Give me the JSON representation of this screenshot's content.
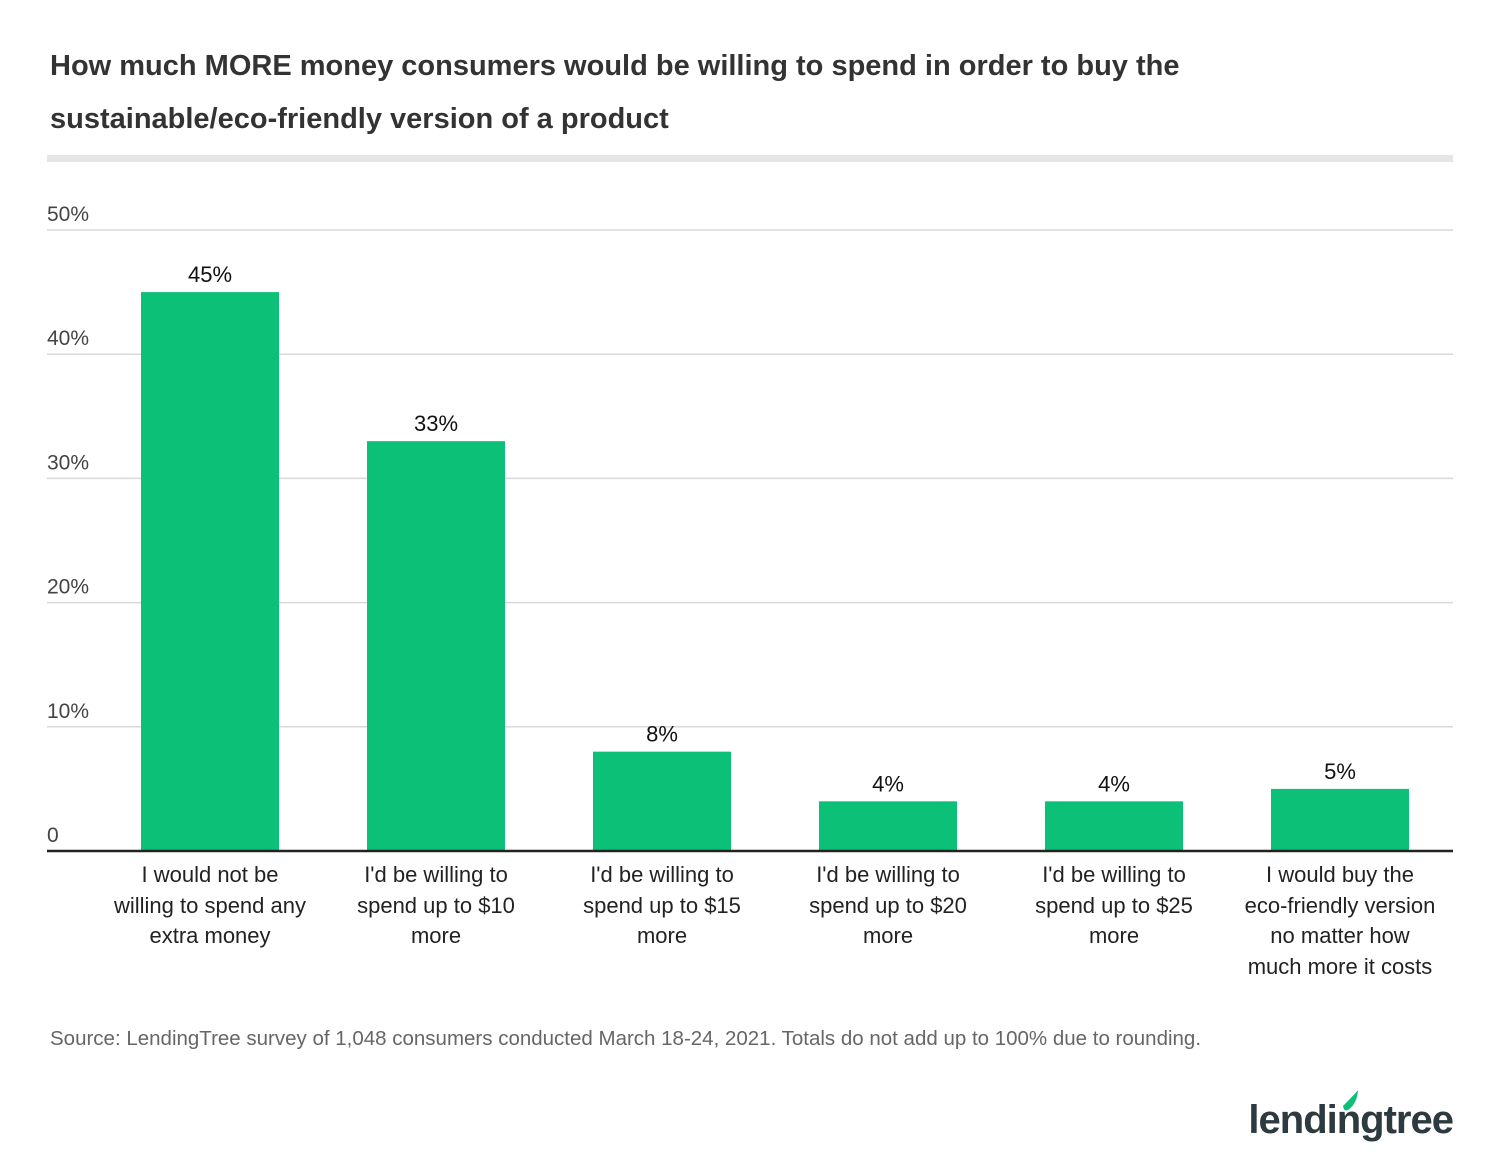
{
  "chart_data": {
    "type": "bar",
    "title": "How much MORE money consumers would be willing to spend in order to buy the sustainable/eco-friendly version of a product",
    "categories": [
      "I would not be\nwilling to spend any\nextra money",
      "I'd be willing to\nspend up to $10\nmore",
      "I'd be willing to\nspend up to $15\nmore",
      "I'd be willing to\nspend up to $20\nmore",
      "I'd be willing to\nspend up to $25\nmore",
      "I would buy the\neco-friendly version\nno matter how\nmuch more it costs"
    ],
    "values": [
      45,
      33,
      8,
      4,
      4,
      5
    ],
    "value_labels": [
      "45%",
      "33%",
      "8%",
      "4%",
      "4%",
      "5%"
    ],
    "color": "#0cc177",
    "ylim": [
      0,
      50
    ],
    "yticks": [
      0,
      {
        "value": 10,
        "label": "10%"
      },
      {
        "value": 20,
        "label": "20%"
      },
      {
        "value": 30,
        "label": "30%"
      },
      {
        "value": 40,
        "label": "40%"
      },
      {
        "value": 50,
        "label": "50%"
      }
    ],
    "grid": true,
    "source": "Source: LendingTree survey of 1,048 consumers conducted March 18-24, 2021. Totals do not add up to 100% due to rounding.",
    "logo": "lendingtree"
  }
}
